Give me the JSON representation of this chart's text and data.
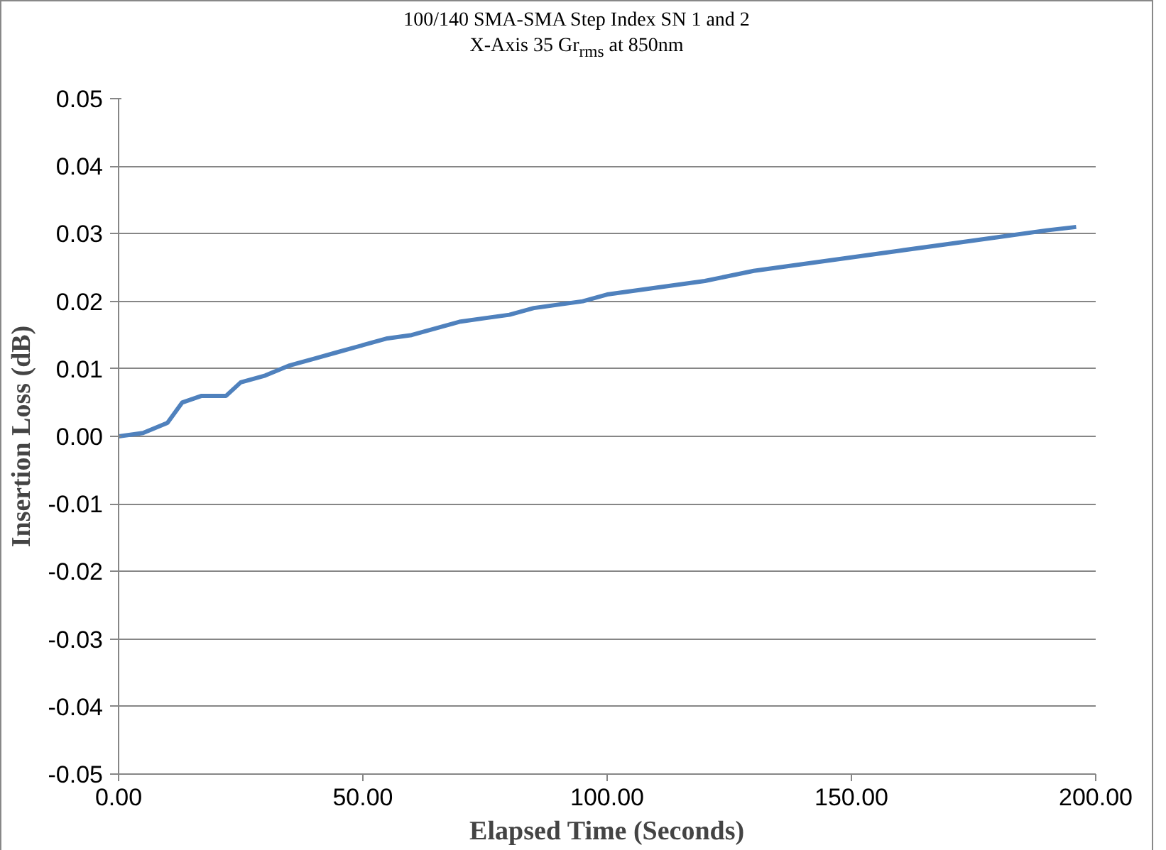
{
  "chart_data": {
    "type": "line",
    "title": "100/140 SMA-SMA Step Index SN 1 and 2",
    "subtitle": "X-Axis 35 Gr$_{rms}$ at 850nm",
    "xlabel": "Elapsed Time (Seconds)",
    "ylabel": "Insertion Loss (dB)",
    "x": [
      0,
      5,
      10,
      13,
      17,
      22,
      25,
      30,
      35,
      40,
      45,
      50,
      55,
      60,
      65,
      70,
      75,
      80,
      85,
      90,
      95,
      100,
      110,
      120,
      130,
      140,
      150,
      160,
      170,
      180,
      190,
      196
    ],
    "series": [
      {
        "color": "#4f81bd",
        "values": [
          0,
          0.0005,
          0.002,
          0.005,
          0.006,
          0.006,
          0.008,
          0.009,
          0.0105,
          0.0115,
          0.0125,
          0.0135,
          0.0145,
          0.015,
          0.016,
          0.017,
          0.0175,
          0.018,
          0.019,
          0.0195,
          0.02,
          0.021,
          0.022,
          0.023,
          0.0245,
          0.0255,
          0.0265,
          0.0275,
          0.0285,
          0.0295,
          0.0305,
          0.031
        ]
      }
    ],
    "xlim": [
      0,
      200
    ],
    "xticks": [
      {
        "value": 0,
        "label": "0.00"
      },
      {
        "value": 50,
        "label": "50.00"
      },
      {
        "value": 100,
        "label": "100.00"
      },
      {
        "value": 150,
        "label": "150.00"
      },
      {
        "value": 200,
        "label": "200.00"
      }
    ],
    "ylim": [
      -0.05,
      0.05
    ],
    "yticks": [
      {
        "value": -0.05,
        "label": "-0.05"
      },
      {
        "value": -0.04,
        "label": "-0.04"
      },
      {
        "value": -0.03,
        "label": "-0.03"
      },
      {
        "value": -0.02,
        "label": "-0.02"
      },
      {
        "value": -0.01,
        "label": "-0.01"
      },
      {
        "value": 0,
        "label": "0.00"
      },
      {
        "value": 0.01,
        "label": "0.01"
      },
      {
        "value": 0.02,
        "label": "0.02"
      },
      {
        "value": 0.03,
        "label": "0.03"
      },
      {
        "value": 0.04,
        "label": "0.04"
      },
      {
        "value": 0.05,
        "label": "0.05"
      }
    ],
    "grid": "y",
    "marker": "none",
    "line_style": "solid"
  }
}
